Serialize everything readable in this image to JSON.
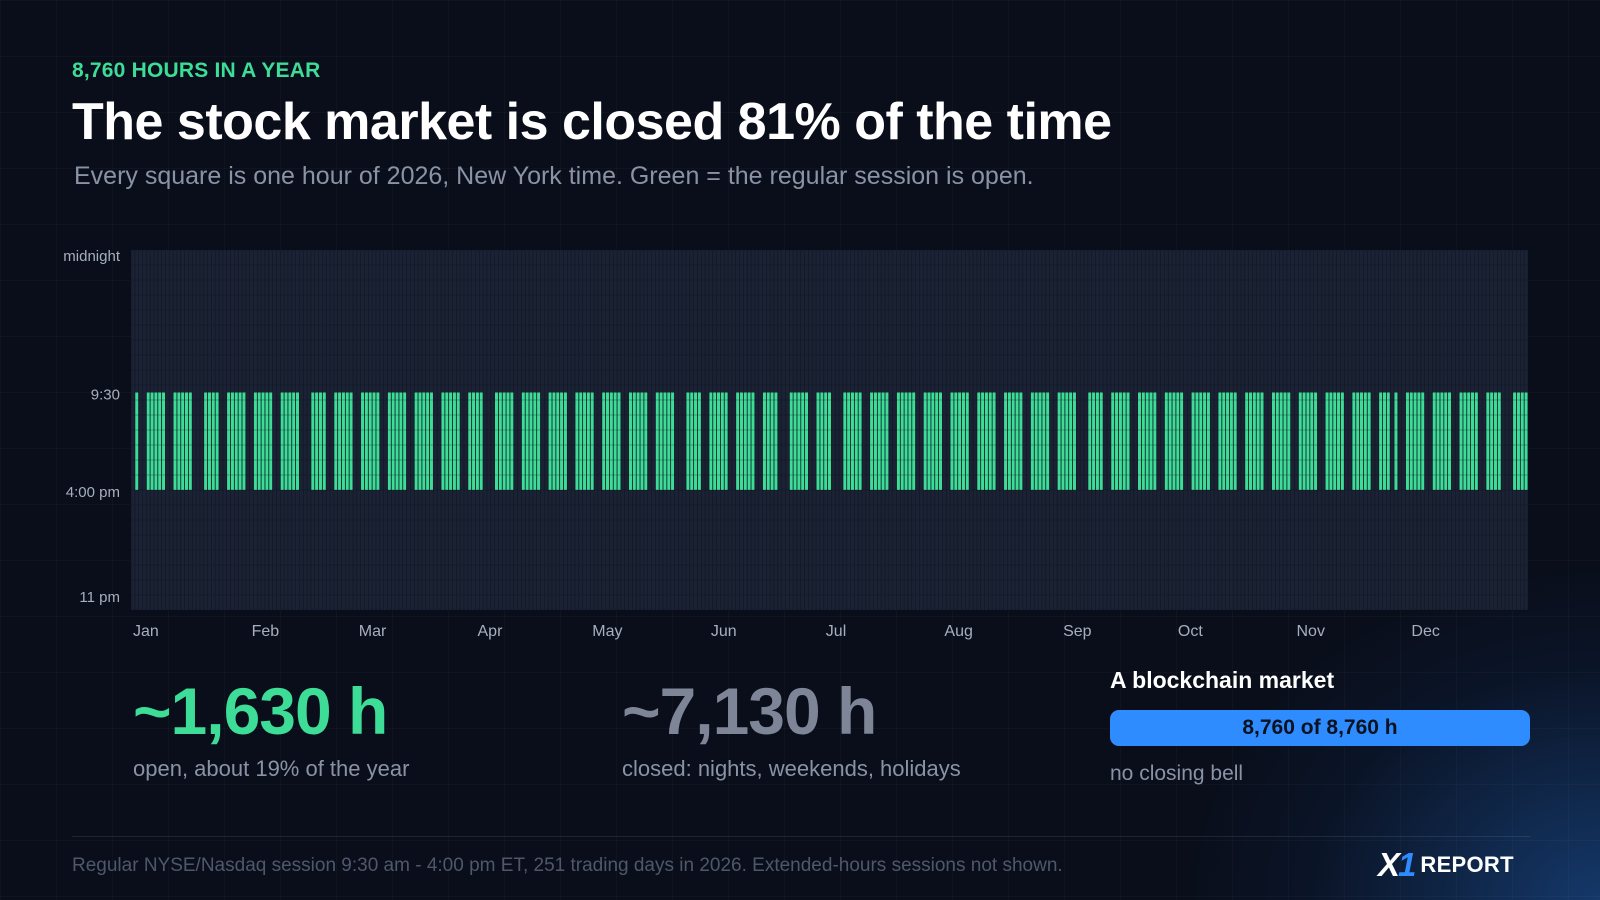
{
  "header": {
    "eyebrow": "8,760 HOURS IN A YEAR",
    "title": "The stock market is closed 81% of the time",
    "subtitle": "Every square is one hour of 2026, New York time. Green = the regular session is open."
  },
  "chart_data": {
    "type": "heatmap",
    "year": 2026,
    "columns_per_day": 1,
    "rows": "hours of the day, midnight at top to 11 pm at bottom",
    "y_tick_labels": [
      "midnight",
      "9:30",
      "4:00 pm",
      "11 pm"
    ],
    "month_labels": [
      "Jan",
      "Feb",
      "Mar",
      "Apr",
      "May",
      "Jun",
      "Jul",
      "Aug",
      "Sep",
      "Oct",
      "Nov",
      "Dec"
    ],
    "session_open": "9:30",
    "session_close": "4:00 pm",
    "trading_days": 251,
    "holidays": [
      "2026-01-01",
      "2026-01-19",
      "2026-02-16",
      "2026-04-03",
      "2026-05-25",
      "2026-06-19",
      "2026-07-03",
      "2026-09-07",
      "2026-11-26",
      "2026-12-25"
    ],
    "grid": true
  },
  "colors": {
    "open": "#3ddc97",
    "closed": "#1a2233",
    "blockchain": "#2f8cff"
  },
  "stats": {
    "open_value": "~1,630 h",
    "open_label": "open, about 19% of the year",
    "closed_value": "~7,130 h",
    "closed_label": "closed: nights, weekends, holidays"
  },
  "blockchain": {
    "title": "A blockchain market",
    "bar_label": "8,760 of 8,760 h",
    "fraction": 1,
    "note": "no closing bell"
  },
  "footer": {
    "note": "Regular NYSE/Nasdaq session 9:30 am - 4:00 pm ET, 251 trading days in 2026. Extended-hours sessions not shown.",
    "logo_mark": "X",
    "logo_mark_accent": "1",
    "logo_word": "REPORT"
  }
}
